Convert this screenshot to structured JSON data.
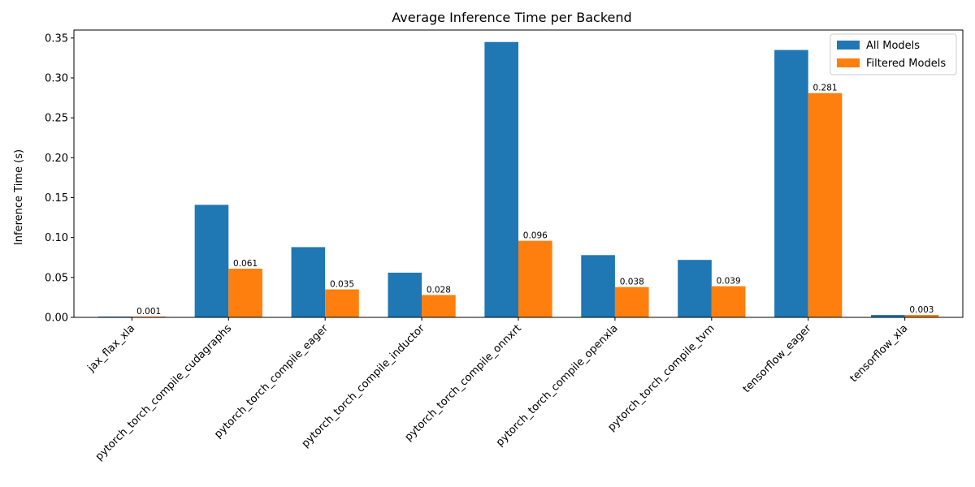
{
  "chart_data": {
    "type": "bar",
    "title": "Average Inference Time per Backend",
    "xlabel": "",
    "ylabel": "Inference Time (s)",
    "ylim": [
      0,
      0.36
    ],
    "yticks": [
      "0.00",
      "0.05",
      "0.10",
      "0.15",
      "0.20",
      "0.25",
      "0.30",
      "0.35"
    ],
    "ytick_values": [
      0,
      0.05,
      0.1,
      0.15,
      0.2,
      0.25,
      0.3,
      0.35
    ],
    "grid": false,
    "legend_position": "top-right",
    "categories": [
      "jax_flax_xla",
      "pytorch_torch_compile_cudagraphs",
      "pytorch_torch_compile_eager",
      "pytorch_torch_compile_inductor",
      "pytorch_torch_compile_onnxrt",
      "pytorch_torch_compile_openxla",
      "pytorch_torch_compile_tvm",
      "tensorflow_eager",
      "tensorflow_xla"
    ],
    "series": [
      {
        "name": "All Models",
        "color": "#1f77b4",
        "values": [
          0.001,
          0.141,
          0.088,
          0.056,
          0.345,
          0.078,
          0.072,
          0.335,
          0.003
        ],
        "labels": [
          "",
          "",
          "",
          "",
          "",
          "",
          "",
          "",
          ""
        ]
      },
      {
        "name": "Filtered Models",
        "color": "#ff7f0e",
        "values": [
          0.001,
          0.061,
          0.035,
          0.028,
          0.096,
          0.038,
          0.039,
          0.281,
          0.003
        ],
        "labels": [
          "0.001",
          "0.061",
          "0.035",
          "0.028",
          "0.096",
          "0.038",
          "0.039",
          "0.281",
          "0.003"
        ]
      }
    ]
  }
}
